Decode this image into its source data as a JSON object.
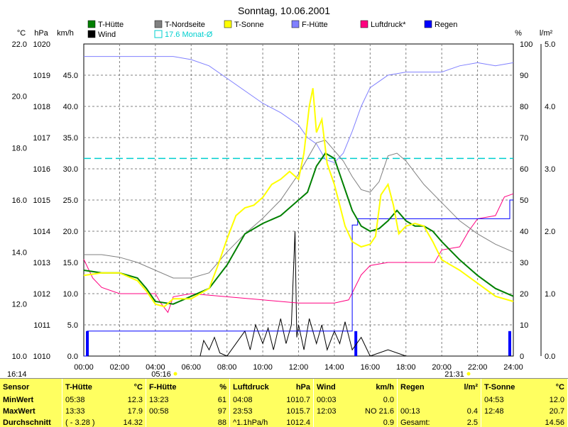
{
  "title": "Sonntag, 10.06.2001",
  "time_left": "16:14",
  "sunrise": "05:16",
  "sunset": "21:31",
  "axis_units": {
    "temp": "°C",
    "press": "hPa",
    "wind": "km/h",
    "humid": "%",
    "rain": "l/m²"
  },
  "axis_ticks": {
    "temp": [
      "22.0",
      "20.0",
      "18.0",
      "16.0",
      "14.0",
      "12.0",
      "10.0"
    ],
    "press": [
      "1020",
      "1019",
      "1018",
      "1017",
      "1016",
      "1015",
      "1014",
      "1013",
      "1012",
      "1011",
      "1010"
    ],
    "wind": [
      "45.0",
      "40.0",
      "35.0",
      "30.0",
      "25.0",
      "20.0",
      "15.0",
      "10.0",
      "5.0",
      "0.0"
    ],
    "humid": [
      "100",
      "90",
      "80",
      "70",
      "60",
      "50",
      "40",
      "30",
      "20",
      "10",
      "0"
    ],
    "rain": [
      "5.0",
      "4.0",
      "3.0",
      "2.0",
      "1.0",
      "0.0"
    ],
    "time": [
      "00:00",
      "02:00",
      "04:00",
      "06:00",
      "08:00",
      "10:00",
      "12:00",
      "14:00",
      "16:00",
      "18:00",
      "20:00",
      "22:00",
      "24:00"
    ]
  },
  "legend": [
    {
      "label": "T-Hütte",
      "color": "#008000"
    },
    {
      "label": "T-Nordseite",
      "color": "#808080"
    },
    {
      "label": "T-Sonne",
      "color": "#ffff00"
    },
    {
      "label": "F-Hütte",
      "color": "#8080ff"
    },
    {
      "label": "Luftdruck*",
      "color": "#ff0080"
    },
    {
      "label": "Regen",
      "color": "#0000ff"
    },
    {
      "label": "Wind",
      "color": "#000000"
    },
    {
      "label": "17.6 Monat-Ø",
      "color": "#00cfcf"
    }
  ],
  "chart_data": {
    "type": "line",
    "title": "Sonntag, 10.06.2001",
    "x_unit": "hours",
    "xlim": [
      0,
      24
    ],
    "temp_lim": [
      10,
      22
    ],
    "humid_lim": [
      0,
      100
    ],
    "press_lim": [
      1010,
      1020
    ],
    "rain_lim": [
      0,
      5
    ],
    "wind_lim": [
      0,
      50
    ],
    "month_avg_temp": 17.6,
    "series": [
      {
        "name": "T-Hütte",
        "axis": "temp",
        "color": "#008000",
        "points": [
          [
            0,
            13.3
          ],
          [
            1,
            13.2
          ],
          [
            2,
            13.2
          ],
          [
            3,
            13.0
          ],
          [
            3.5,
            12.6
          ],
          [
            4,
            12.1
          ],
          [
            5,
            12.0
          ],
          [
            6,
            12.3
          ],
          [
            7,
            12.6
          ],
          [
            8,
            13.5
          ],
          [
            9,
            14.7
          ],
          [
            10,
            15.1
          ],
          [
            11,
            15.4
          ],
          [
            11.5,
            15.7
          ],
          [
            12,
            16.0
          ],
          [
            12.5,
            16.3
          ],
          [
            13,
            17.3
          ],
          [
            13.5,
            17.8
          ],
          [
            14,
            17.6
          ],
          [
            14.5,
            16.6
          ],
          [
            15,
            15.6
          ],
          [
            15.5,
            15.0
          ],
          [
            16,
            14.8
          ],
          [
            16.5,
            14.9
          ],
          [
            17,
            15.2
          ],
          [
            17.5,
            15.6
          ],
          [
            18,
            15.2
          ],
          [
            18.5,
            15.0
          ],
          [
            19,
            15.0
          ],
          [
            19.5,
            14.8
          ],
          [
            20,
            14.4
          ],
          [
            21,
            13.7
          ],
          [
            22,
            13.1
          ],
          [
            23,
            12.6
          ],
          [
            24,
            12.3
          ]
        ]
      },
      {
        "name": "T-Nordseite",
        "axis": "temp",
        "color": "#808080",
        "points": [
          [
            0,
            13.9
          ],
          [
            1,
            13.9
          ],
          [
            2,
            13.8
          ],
          [
            3,
            13.6
          ],
          [
            4,
            13.3
          ],
          [
            5,
            13.0
          ],
          [
            6,
            13.0
          ],
          [
            7,
            13.2
          ],
          [
            8,
            14.0
          ],
          [
            9,
            14.7
          ],
          [
            10,
            15.3
          ],
          [
            11,
            16.0
          ],
          [
            12,
            17.0
          ],
          [
            13,
            18.2
          ],
          [
            13.5,
            18.3
          ],
          [
            14,
            17.9
          ],
          [
            14.5,
            17.5
          ],
          [
            15,
            16.9
          ],
          [
            15.5,
            16.4
          ],
          [
            16,
            16.3
          ],
          [
            16.5,
            16.7
          ],
          [
            17,
            17.7
          ],
          [
            17.5,
            17.8
          ],
          [
            18,
            17.5
          ],
          [
            19,
            16.6
          ],
          [
            20,
            15.9
          ],
          [
            21,
            15.2
          ],
          [
            22,
            14.7
          ],
          [
            23,
            14.3
          ],
          [
            24,
            14.0
          ]
        ]
      },
      {
        "name": "T-Sonne",
        "axis": "temp",
        "color": "#ffff00",
        "points": [
          [
            0,
            13.1
          ],
          [
            1,
            13.2
          ],
          [
            2,
            13.2
          ],
          [
            3,
            12.9
          ],
          [
            3.5,
            12.5
          ],
          [
            4,
            12.0
          ],
          [
            4.5,
            11.9
          ],
          [
            5,
            12.2
          ],
          [
            6,
            12.2
          ],
          [
            7,
            12.6
          ],
          [
            7.5,
            13.5
          ],
          [
            8,
            14.5
          ],
          [
            8.5,
            15.4
          ],
          [
            9,
            15.7
          ],
          [
            9.5,
            15.8
          ],
          [
            10,
            16.1
          ],
          [
            10.5,
            16.6
          ],
          [
            11,
            16.8
          ],
          [
            11.5,
            17.1
          ],
          [
            12,
            16.8
          ],
          [
            12.3,
            17.8
          ],
          [
            12.6,
            19.6
          ],
          [
            12.8,
            20.3
          ],
          [
            13,
            18.6
          ],
          [
            13.3,
            19.1
          ],
          [
            13.6,
            17.4
          ],
          [
            14,
            16.6
          ],
          [
            14.3,
            15.8
          ],
          [
            14.6,
            15.0
          ],
          [
            15,
            14.4
          ],
          [
            15.5,
            14.2
          ],
          [
            16,
            14.3
          ],
          [
            16.3,
            14.6
          ],
          [
            16.6,
            16.2
          ],
          [
            17,
            16.6
          ],
          [
            17.3,
            15.8
          ],
          [
            17.6,
            14.7
          ],
          [
            18,
            15.0
          ],
          [
            18.5,
            15.1
          ],
          [
            19,
            15.0
          ],
          [
            19.5,
            14.4
          ],
          [
            20,
            13.7
          ],
          [
            21,
            13.3
          ],
          [
            22,
            12.8
          ],
          [
            23,
            12.3
          ],
          [
            24,
            12.1
          ]
        ]
      },
      {
        "name": "F-Hütte",
        "axis": "humid",
        "color": "#8080ff",
        "points": [
          [
            0,
            96
          ],
          [
            2,
            96
          ],
          [
            4,
            96
          ],
          [
            5,
            96
          ],
          [
            6,
            95
          ],
          [
            7,
            93
          ],
          [
            8,
            89
          ],
          [
            9,
            85
          ],
          [
            10,
            81
          ],
          [
            11,
            78
          ],
          [
            12,
            74
          ],
          [
            12.5,
            70
          ],
          [
            13,
            68
          ],
          [
            13.5,
            63
          ],
          [
            14,
            62
          ],
          [
            14.5,
            65
          ],
          [
            15,
            72
          ],
          [
            15.5,
            80
          ],
          [
            16,
            86
          ],
          [
            16.5,
            88
          ],
          [
            17,
            90
          ],
          [
            18,
            91
          ],
          [
            19,
            91
          ],
          [
            20,
            91
          ],
          [
            21,
            93
          ],
          [
            22,
            94
          ],
          [
            23,
            93
          ],
          [
            24,
            94
          ]
        ]
      },
      {
        "name": "Luftdruck*",
        "axis": "press",
        "color": "#ff0080",
        "points": [
          [
            0,
            1013.1
          ],
          [
            0.5,
            1012.5
          ],
          [
            1,
            1012.2
          ],
          [
            2,
            1012.0
          ],
          [
            3,
            1012.0
          ],
          [
            4,
            1012.0
          ],
          [
            4.3,
            1011.7
          ],
          [
            4.7,
            1011.4
          ],
          [
            5,
            1011.9
          ],
          [
            6,
            1012.0
          ],
          [
            8,
            1011.9
          ],
          [
            10,
            1011.8
          ],
          [
            12,
            1011.7
          ],
          [
            14,
            1011.7
          ],
          [
            14.8,
            1011.8
          ],
          [
            15.5,
            1012.6
          ],
          [
            16,
            1012.9
          ],
          [
            17,
            1013.0
          ],
          [
            19,
            1013.0
          ],
          [
            19.6,
            1013.0
          ],
          [
            20,
            1013.4
          ],
          [
            21,
            1013.5
          ],
          [
            21.5,
            1014.0
          ],
          [
            22,
            1014.4
          ],
          [
            23,
            1014.5
          ],
          [
            23.5,
            1015.1
          ],
          [
            24,
            1015.2
          ]
        ]
      },
      {
        "name": "Regen",
        "axis": "rain",
        "color": "#0000ff",
        "points": [
          [
            0,
            0.0
          ],
          [
            0.2,
            0.0
          ],
          [
            0.2,
            0.4
          ],
          [
            15.0,
            0.4
          ],
          [
            15.0,
            2.1
          ],
          [
            15.3,
            2.1
          ],
          [
            15.3,
            2.2
          ],
          [
            23.8,
            2.2
          ],
          [
            23.8,
            2.5
          ],
          [
            24,
            2.5
          ]
        ]
      },
      {
        "name": "Wind",
        "axis": "wind",
        "color": "#000000",
        "points": [
          [
            0,
            0
          ],
          [
            6.5,
            0
          ],
          [
            6.7,
            2.5
          ],
          [
            7,
            1
          ],
          [
            7.3,
            3
          ],
          [
            7.6,
            0.5
          ],
          [
            8,
            0
          ],
          [
            8.5,
            2
          ],
          [
            9,
            4
          ],
          [
            9.3,
            1
          ],
          [
            9.6,
            5
          ],
          [
            10,
            2
          ],
          [
            10.3,
            4.5
          ],
          [
            10.6,
            1
          ],
          [
            11,
            6
          ],
          [
            11.3,
            2
          ],
          [
            11.6,
            5
          ],
          [
            11.8,
            20
          ],
          [
            11.9,
            3
          ],
          [
            12,
            5
          ],
          [
            12.3,
            1
          ],
          [
            12.6,
            6
          ],
          [
            13,
            2
          ],
          [
            13.3,
            5
          ],
          [
            13.6,
            1
          ],
          [
            14,
            4
          ],
          [
            14.3,
            2
          ],
          [
            14.6,
            5.5
          ],
          [
            15,
            1
          ],
          [
            15.5,
            3
          ],
          [
            16,
            0
          ],
          [
            17,
            1
          ],
          [
            18,
            0
          ],
          [
            24,
            0
          ]
        ]
      }
    ],
    "rain_bars": [
      {
        "x": 0.2,
        "value": 0.4
      },
      {
        "x": 15.2,
        "value": 0.4
      },
      {
        "x": 23.8,
        "value": 0.4
      }
    ]
  },
  "stats": [
    {
      "header": "Sensor",
      "rows": [
        "MinWert",
        "MaxWert",
        "Durchschnitt"
      ]
    },
    {
      "header": "T-Hütte",
      "unit": "°C",
      "rows": [
        [
          "05:38",
          "12.3"
        ],
        [
          "13:33",
          "17.9"
        ],
        [
          "( - 3.28 )",
          "14.32"
        ]
      ]
    },
    {
      "header": "F-Hütte",
      "unit": "%",
      "rows": [
        [
          "13:23",
          "61"
        ],
        [
          "00:58",
          "97"
        ],
        [
          "",
          "88"
        ]
      ]
    },
    {
      "header": "Luftdruck",
      "unit": "hPa",
      "rows": [
        [
          "04:08",
          "1010.7"
        ],
        [
          "23:53",
          "1015.7"
        ],
        [
          "^1.1hPa/h",
          "1012.4"
        ]
      ]
    },
    {
      "header": "Wind",
      "unit": "km/h",
      "rows": [
        [
          "00:03",
          "0.0"
        ],
        [
          "12:03",
          "NO 21.6"
        ],
        [
          "",
          "0.9"
        ]
      ]
    },
    {
      "header": "Regen",
      "unit": "l/m²",
      "rows": [
        [
          "",
          ""
        ],
        [
          "00:13",
          "0.4"
        ],
        [
          "Gesamt:",
          "2.5"
        ]
      ]
    },
    {
      "header": "T-Sonne",
      "unit": "°C",
      "rows": [
        [
          "04:53",
          "12.0"
        ],
        [
          "12:48",
          "20.7"
        ],
        [
          "",
          "14.56"
        ]
      ]
    }
  ]
}
